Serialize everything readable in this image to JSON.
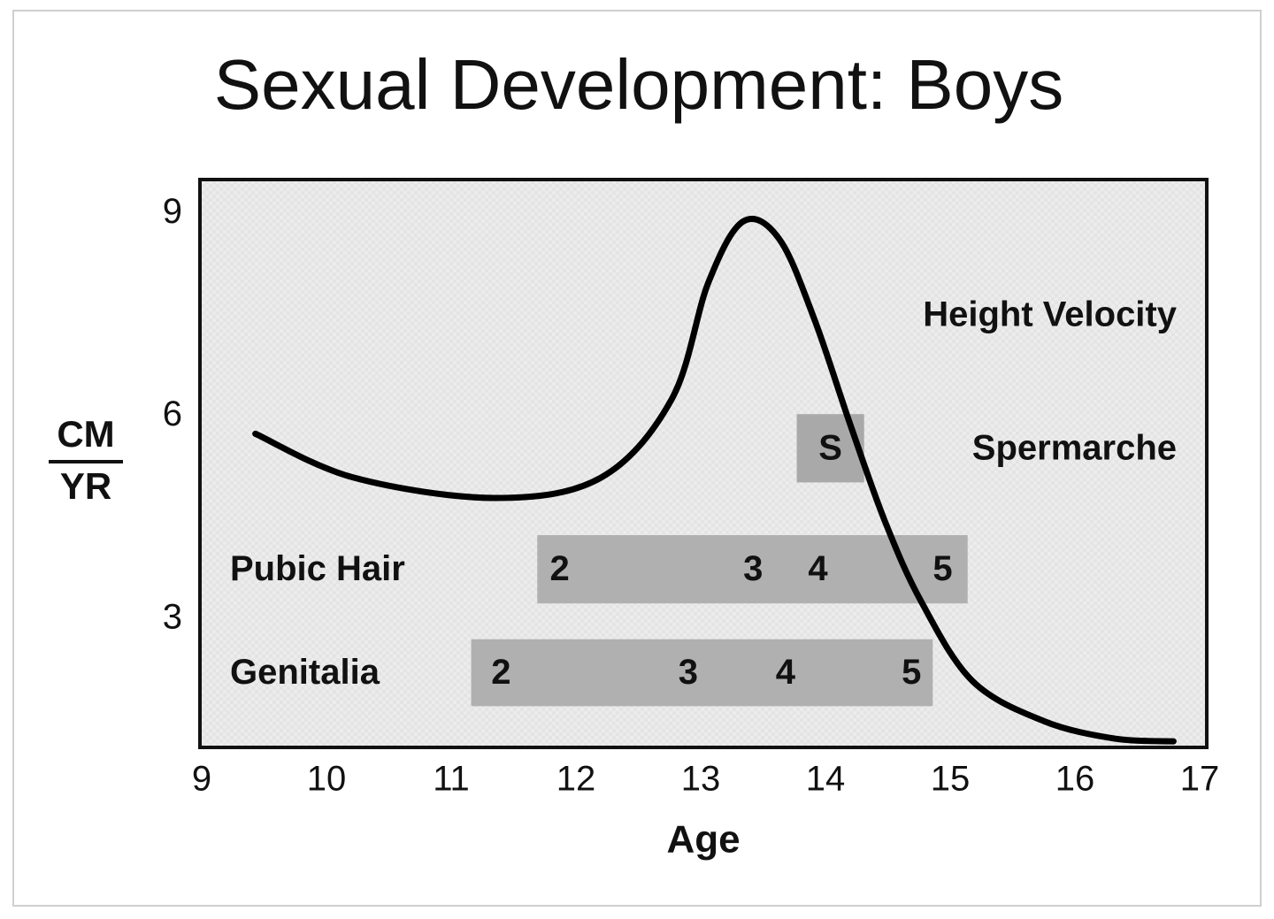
{
  "chart_data": {
    "type": "line",
    "title": "Sexual Development: Boys",
    "x_label": "Age",
    "y_label_top": "CM",
    "y_label_bottom": "YR",
    "xlim": [
      9,
      17
    ],
    "ylim": [
      1.1,
      9.5
    ],
    "xticks": [
      9,
      10,
      11,
      12,
      13,
      14,
      15,
      16,
      17
    ],
    "yticks": [
      3,
      6,
      9
    ],
    "series": [
      {
        "name": "Height Velocity",
        "color": "#000000",
        "x": [
          9.43,
          10.22,
          11.35,
          12.2,
          12.77,
          13.06,
          13.34,
          13.63,
          13.91,
          14.2,
          14.48,
          14.77,
          15.18,
          15.75,
          16.32,
          16.79
        ],
        "values": [
          5.74,
          5.09,
          4.79,
          5.09,
          6.26,
          7.97,
          8.88,
          8.62,
          7.44,
          5.87,
          4.43,
          3.25,
          2.08,
          1.49,
          1.23,
          1.19
        ]
      }
    ],
    "bands": [
      {
        "name": "Spermarche",
        "label": "S",
        "start": 13.77,
        "end": 14.31,
        "low": 5.02,
        "high": 6.03,
        "color": "#a9a9a9",
        "stages": []
      },
      {
        "name": "Pubic Hair",
        "start": 11.69,
        "end": 15.14,
        "low": 3.23,
        "high": 4.24,
        "color": "#b0b0b0",
        "stages": [
          {
            "label": "2",
            "age": 11.87
          },
          {
            "label": "3",
            "age": 13.42
          },
          {
            "label": "4",
            "age": 13.94
          },
          {
            "label": "5",
            "age": 14.94
          }
        ]
      },
      {
        "name": "Genitalia",
        "start": 11.16,
        "end": 14.86,
        "low": 1.71,
        "high": 2.7,
        "color": "#b0b0b0",
        "stages": [
          {
            "label": "2",
            "age": 11.4
          },
          {
            "label": "3",
            "age": 12.9
          },
          {
            "label": "4",
            "age": 13.68
          },
          {
            "label": "5",
            "age": 14.69
          }
        ]
      }
    ]
  }
}
